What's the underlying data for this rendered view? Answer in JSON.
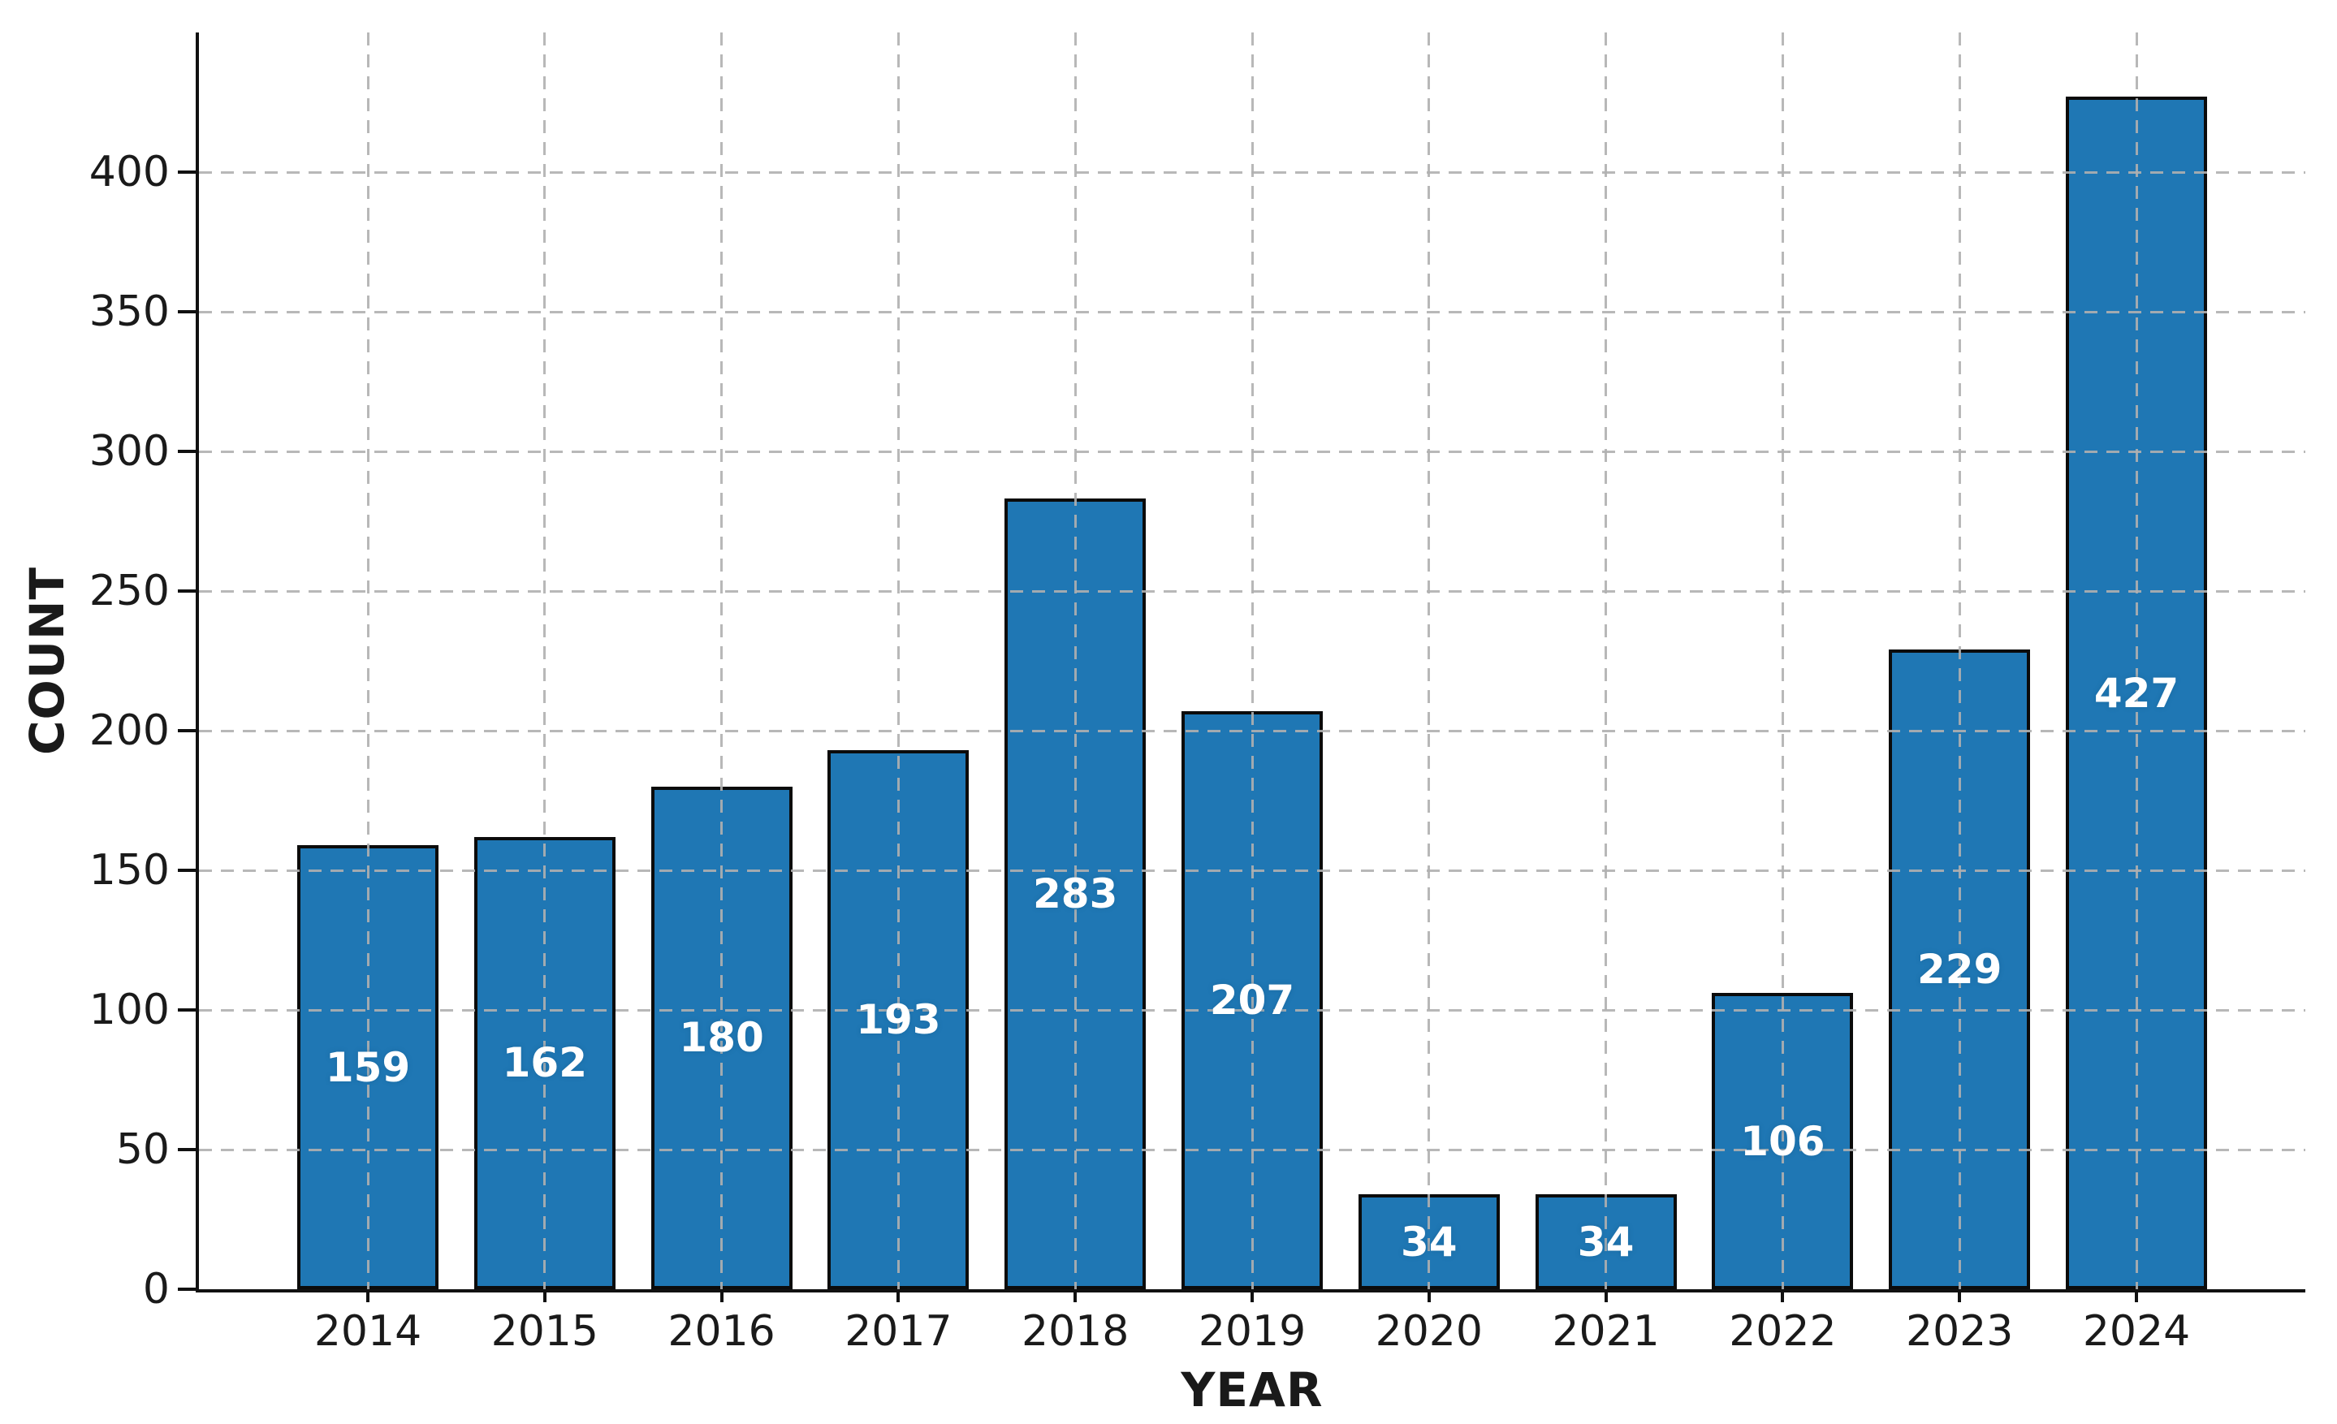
{
  "chart_data": {
    "type": "bar",
    "title": "",
    "xlabel": "YEAR",
    "ylabel": "COUNT",
    "categories": [
      "2014",
      "2015",
      "2016",
      "2017",
      "2018",
      "2019",
      "2020",
      "2021",
      "2022",
      "2023",
      "2024"
    ],
    "values": [
      159,
      162,
      180,
      193,
      283,
      207,
      34,
      34,
      106,
      229,
      427
    ],
    "ylim": [
      0,
      450
    ],
    "yticks": [
      0,
      50,
      100,
      150,
      200,
      250,
      300,
      350,
      400
    ],
    "grid": "dashed-both-axes",
    "legend": "none",
    "bar_color": "#1f77b4",
    "bar_edge_color": "#0b0b0b",
    "value_label_color": "#ffffff",
    "grid_color": "#b0b0b0",
    "axis_color": "#111111"
  }
}
